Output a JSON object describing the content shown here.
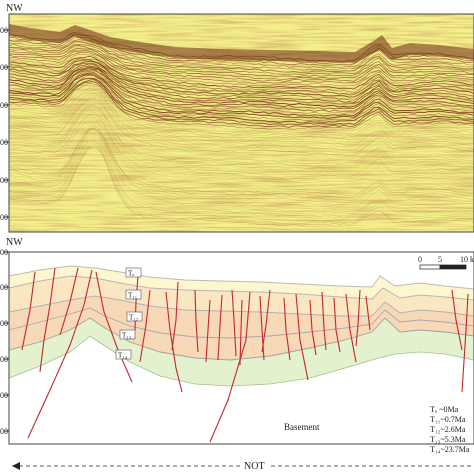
{
  "top_panel": {
    "direction_label": "NW",
    "depth_ticks": [
      "00",
      "00",
      "00",
      "00",
      "00",
      "00"
    ]
  },
  "bottom_panel": {
    "direction_label": "NW",
    "depth_ticks": [
      "00",
      "00",
      "00",
      "00",
      "00",
      "00"
    ],
    "horizons": [
      {
        "label": "Tₒ",
        "color": "#b9b9b9"
      },
      {
        "label": "T₁₁",
        "color": "#b6b6b6"
      },
      {
        "label": "T₁₂",
        "color": "#b0b0b0"
      },
      {
        "label": "T₁₃",
        "color": "#a8a8a8"
      },
      {
        "label": "T₁₄",
        "color": "#a0a0a0"
      }
    ],
    "scale_bar": {
      "ticks": [
        "0",
        "5",
        "10"
      ],
      "unit": "km"
    },
    "basement_label": "Basement",
    "legend": [
      "Tₒ ~0Ma",
      "T₁₁~0.7Ma",
      "T₁₂~2.6Ma",
      "T₁₃~5.3Ma",
      "T₁₄~23.7Ma"
    ],
    "fault_color": "#c0282d",
    "fill_colors": [
      "#fdf6cf",
      "#fbe6c2",
      "#f7d8b7",
      "#e3f1cf"
    ],
    "section_label": "NOT"
  }
}
